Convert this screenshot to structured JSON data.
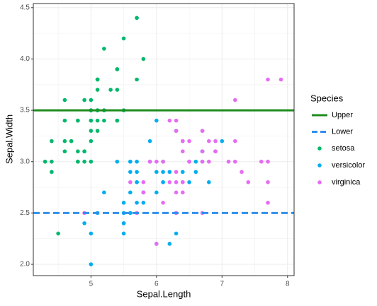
{
  "chart_data": {
    "type": "scatter",
    "x_label": "Sepal.Length",
    "y_label": "Sepal.Width",
    "legend_title": "Species",
    "legend_position": "right",
    "grid": true,
    "xlim": [
      4.12,
      8.1
    ],
    "ylim": [
      1.89,
      4.54
    ],
    "xticks": [
      5,
      6,
      7,
      8
    ],
    "yticks": [
      {
        "value": 2,
        "label": "2.0"
      },
      {
        "value": 2.5,
        "label": "2.5"
      },
      {
        "value": 3,
        "label": "3.0"
      },
      {
        "value": 3.5,
        "label": "3.5"
      },
      {
        "value": 4,
        "label": "4.0"
      },
      {
        "value": 4.5,
        "label": "4.5"
      }
    ],
    "hlines": [
      {
        "name": "Upper",
        "value": 3.5,
        "color": "#1e8c1e",
        "dashed": false
      },
      {
        "name": "Lower",
        "value": 2.5,
        "color": "#2f8fec",
        "dashed": true
      }
    ],
    "series": [
      {
        "name": "setosa",
        "color": "#00b86b",
        "x": [
          5.1,
          4.9,
          4.7,
          4.6,
          5.0,
          5.4,
          4.6,
          5.0,
          4.4,
          4.9,
          5.4,
          4.8,
          4.8,
          4.3,
          5.8,
          5.7,
          5.4,
          5.1,
          5.7,
          5.1,
          5.4,
          5.1,
          4.6,
          5.1,
          4.8,
          5.0,
          5.0,
          5.2,
          5.2,
          4.7,
          4.8,
          5.4,
          5.2,
          5.5,
          4.9,
          5.0,
          5.5,
          4.9,
          4.4,
          5.1,
          5.0,
          4.5,
          4.4,
          5.0,
          5.1,
          4.8,
          5.1,
          4.6,
          5.3,
          5.0
        ],
        "values": [
          3.5,
          3.0,
          3.2,
          3.1,
          3.6,
          3.9,
          3.4,
          3.4,
          2.9,
          3.1,
          3.7,
          3.4,
          3.0,
          3.0,
          4.0,
          4.4,
          3.9,
          3.5,
          3.8,
          3.8,
          3.4,
          3.7,
          3.6,
          3.3,
          3.4,
          3.0,
          3.4,
          3.5,
          3.4,
          3.2,
          3.1,
          3.4,
          4.1,
          4.2,
          3.1,
          3.2,
          3.5,
          3.6,
          3.0,
          3.4,
          3.5,
          2.3,
          3.2,
          3.5,
          3.8,
          3.0,
          3.8,
          3.2,
          3.7,
          3.3
        ]
      },
      {
        "name": "versicolor",
        "color": "#00aef0",
        "x": [
          7.0,
          6.4,
          6.9,
          5.5,
          6.5,
          5.7,
          6.3,
          4.9,
          6.6,
          5.2,
          5.0,
          5.9,
          6.0,
          6.1,
          5.6,
          6.7,
          5.6,
          5.8,
          6.2,
          5.6,
          5.9,
          6.1,
          6.3,
          6.1,
          6.4,
          6.6,
          6.8,
          6.7,
          6.0,
          5.7,
          5.5,
          5.5,
          5.8,
          6.0,
          5.4,
          6.0,
          6.7,
          6.3,
          5.6,
          5.5,
          5.5,
          6.1,
          5.8,
          5.0,
          5.6,
          5.7,
          5.7,
          6.2,
          5.1,
          5.7
        ],
        "values": [
          3.2,
          3.2,
          3.1,
          2.3,
          2.8,
          2.8,
          3.3,
          2.4,
          2.9,
          2.7,
          2.0,
          3.0,
          2.2,
          2.9,
          2.9,
          3.1,
          3.0,
          2.7,
          2.2,
          2.5,
          3.2,
          2.8,
          2.5,
          2.8,
          2.9,
          3.0,
          2.8,
          3.0,
          2.9,
          2.6,
          2.4,
          2.4,
          2.7,
          2.7,
          3.0,
          3.4,
          3.1,
          2.3,
          3.0,
          2.5,
          2.6,
          3.0,
          2.6,
          2.3,
          2.7,
          3.0,
          2.9,
          2.9,
          2.5,
          2.8
        ]
      },
      {
        "name": "virginica",
        "color": "#e76bf3",
        "x": [
          6.3,
          5.8,
          7.1,
          6.3,
          6.5,
          7.6,
          4.9,
          7.3,
          6.7,
          7.2,
          6.5,
          6.4,
          6.8,
          5.7,
          5.8,
          6.4,
          6.5,
          7.7,
          7.7,
          6.0,
          6.9,
          5.6,
          7.7,
          6.3,
          6.7,
          7.2,
          6.2,
          6.1,
          6.4,
          7.2,
          7.4,
          7.9,
          6.4,
          6.3,
          6.1,
          7.7,
          6.3,
          6.4,
          6.0,
          6.9,
          6.7,
          6.9,
          5.8,
          6.8,
          6.7,
          6.7,
          6.3,
          6.5,
          6.2,
          5.9
        ],
        "values": [
          3.3,
          2.7,
          3.0,
          2.9,
          3.0,
          3.0,
          2.5,
          2.9,
          2.5,
          3.6,
          3.2,
          2.7,
          3.0,
          2.5,
          2.8,
          3.2,
          3.0,
          3.8,
          2.6,
          2.2,
          3.2,
          2.8,
          2.8,
          2.7,
          3.3,
          3.2,
          2.8,
          3.0,
          2.8,
          3.0,
          2.8,
          3.8,
          2.8,
          2.8,
          2.6,
          3.0,
          3.4,
          3.1,
          3.0,
          3.1,
          3.1,
          3.1,
          2.7,
          3.2,
          3.3,
          3.0,
          2.5,
          3.0,
          3.4,
          3.0
        ]
      }
    ]
  }
}
